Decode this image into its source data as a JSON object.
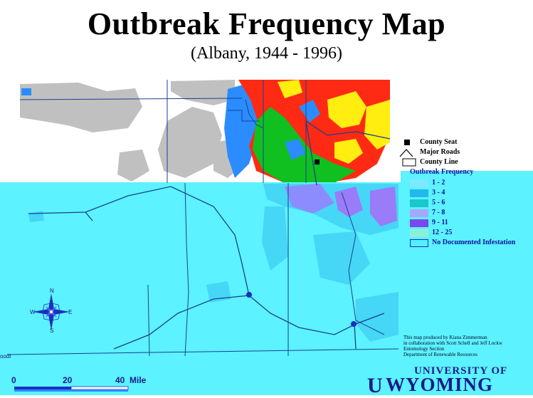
{
  "title": "Outbreak Frequency Map",
  "subtitle": "(Albany, 1944 - 1996)",
  "legend": {
    "symbols": [
      {
        "label": "County Seat",
        "icon": "county-seat-square-icon"
      },
      {
        "label": "Major Roads",
        "icon": "road-line-icon"
      },
      {
        "label": "County Line",
        "icon": "county-line-box-icon"
      }
    ],
    "frequency_title": "Outbreak Frequency",
    "classes": [
      {
        "label": "1 - 2",
        "color": "#7fe8ff"
      },
      {
        "label": "3 - 4",
        "color": "#22b8ee"
      },
      {
        "label": "5 - 6",
        "color": "#18c8cc"
      },
      {
        "label": "7 - 8",
        "color": "#a4a8ff"
      },
      {
        "label": "9 - 11",
        "color": "#7a48f0"
      },
      {
        "label": "12 - 25",
        "color": "#8cf0d8"
      },
      {
        "label": "No Documented Infestation",
        "color": "#55f0ff"
      }
    ]
  },
  "credits": [
    "This map produced by Kiana Zimmerman",
    "in collaboration with Scott Schell and Jeff Lockw",
    "Entomology Section",
    "Department of Renewable Resources"
  ],
  "university": {
    "line1": "UNIVERSITY OF",
    "line2": "WYOMING"
  },
  "scale_bar": {
    "ticks": [
      "0",
      "20",
      "40"
    ],
    "unit": "Mile"
  },
  "compass": {
    "n": "N",
    "s": "S",
    "e": "E",
    "w": "W"
  },
  "edge_text": "oodl",
  "colors": {
    "overlay": "#5cf2ff",
    "red": "#ff2a14",
    "yellow": "#ffee10",
    "green": "#10c020",
    "blue_zone": "#2a8cff",
    "gray": "#c0c0c0",
    "road": "#1a4090"
  }
}
